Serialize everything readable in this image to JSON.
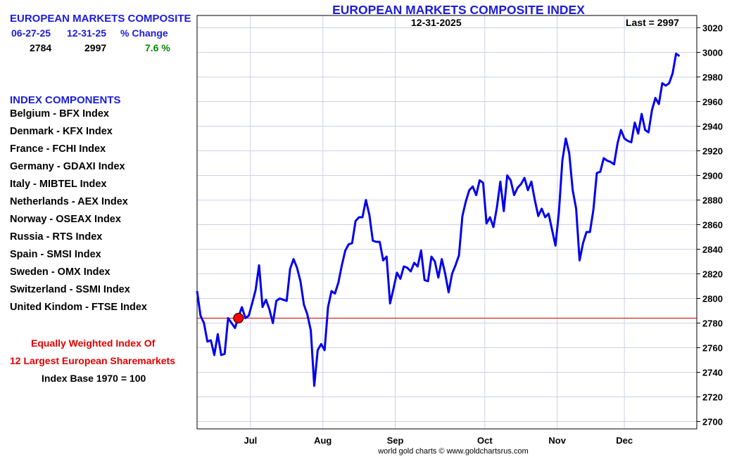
{
  "summary": {
    "title": "EUROPEAN MARKETS COMPOSITE",
    "col1_header": "06-27-25",
    "col2_header": "12-31-25",
    "col3_header": "% Change",
    "col1_value": "2784",
    "col2_value": "2997",
    "col3_value": "7.6 %",
    "change_color": "#008800"
  },
  "components": {
    "title": "INDEX COMPONENTS",
    "items": [
      "Belgium - BFX Index",
      "Denmark - KFX Index",
      "France - FCHI Index",
      "Germany - GDAXI Index",
      "Italy - MIBTEL Index",
      "Netherlands - AEX Index",
      "Norway - OSEAX Index",
      "Russia - RTS Index",
      "Spain - SMSI Index",
      "Sweden - OMX Index",
      "Switzerland - SSMI Index",
      "United Kindom - FTSE Index"
    ]
  },
  "notes": {
    "line1": "Equally Weighted Index Of",
    "line2": "12 Largest European Sharemarkets",
    "line3": "Index Base 1970 = 100"
  },
  "chart": {
    "date_label": "12-31-2025",
    "last_label": "Last = 2997",
    "footer": "world gold charts © www.goldchartsrus.com"
  },
  "colors": {
    "title_blue": "#1c1cd8",
    "line_blue": "#0000ee",
    "marker_red": "#ff0000",
    "reference_red": "#cc0000",
    "grid": "#cfd0ea"
  },
  "chart_data": {
    "type": "line",
    "title": "EUROPEAN MARKETS COMPOSITE INDEX",
    "xlabel": "",
    "ylabel": "",
    "x_ticks": [
      "Jul",
      "Aug",
      "Sep",
      "Oct",
      "Nov",
      "Dec"
    ],
    "x_tick_positions": [
      3.5,
      24.5,
      45.5,
      71.5,
      92.5,
      112
    ],
    "x_range": [
      -12,
      133
    ],
    "ylim": [
      2694,
      3030
    ],
    "y_ticks": [
      2700,
      2720,
      2740,
      2760,
      2780,
      2800,
      2820,
      2840,
      2860,
      2880,
      2900,
      2920,
      2940,
      2960,
      2980,
      3000,
      3020
    ],
    "grid": true,
    "reference_line": 2784,
    "start_marker": {
      "x": 0,
      "y": 2784
    },
    "series": [
      {
        "values": [
          2806,
          2786,
          2780,
          2765,
          2766,
          2754,
          2771,
          2754,
          2755,
          2784,
          2780,
          2776,
          2785,
          2793,
          2784,
          2786,
          2796,
          2807,
          2827,
          2793,
          2799,
          2791,
          2780,
          2798,
          2800,
          2799,
          2798,
          2824,
          2832,
          2825,
          2814,
          2795,
          2787,
          2774,
          2729,
          2758,
          2763,
          2758,
          2793,
          2806,
          2804,
          2813,
          2827,
          2839,
          2844,
          2845,
          2863,
          2866,
          2866,
          2880,
          2868,
          2847,
          2846,
          2846,
          2831,
          2834,
          2796,
          2808,
          2821,
          2816,
          2826,
          2825,
          2822,
          2829,
          2826,
          2839,
          2815,
          2814,
          2834,
          2830,
          2817,
          2832,
          2820,
          2805,
          2820,
          2827,
          2835,
          2867,
          2879,
          2888,
          2891,
          2884,
          2896,
          2894,
          2861,
          2866,
          2858,
          2874,
          2895,
          2871,
          2900,
          2896,
          2884,
          2890,
          2893,
          2898,
          2888,
          2895,
          2880,
          2867,
          2873,
          2866,
          2869,
          2856,
          2843,
          2870,
          2912,
          2930,
          2918,
          2888,
          2873,
          2831,
          2845,
          2854,
          2854,
          2872,
          2902,
          2903,
          2914,
          2912,
          2911,
          2909,
          2926,
          2937,
          2930,
          2928,
          2927,
          2943,
          2934,
          2950,
          2937,
          2935,
          2953,
          2963,
          2958,
          2975,
          2973,
          2975,
          2983,
          2999,
          2997
        ]
      }
    ]
  }
}
